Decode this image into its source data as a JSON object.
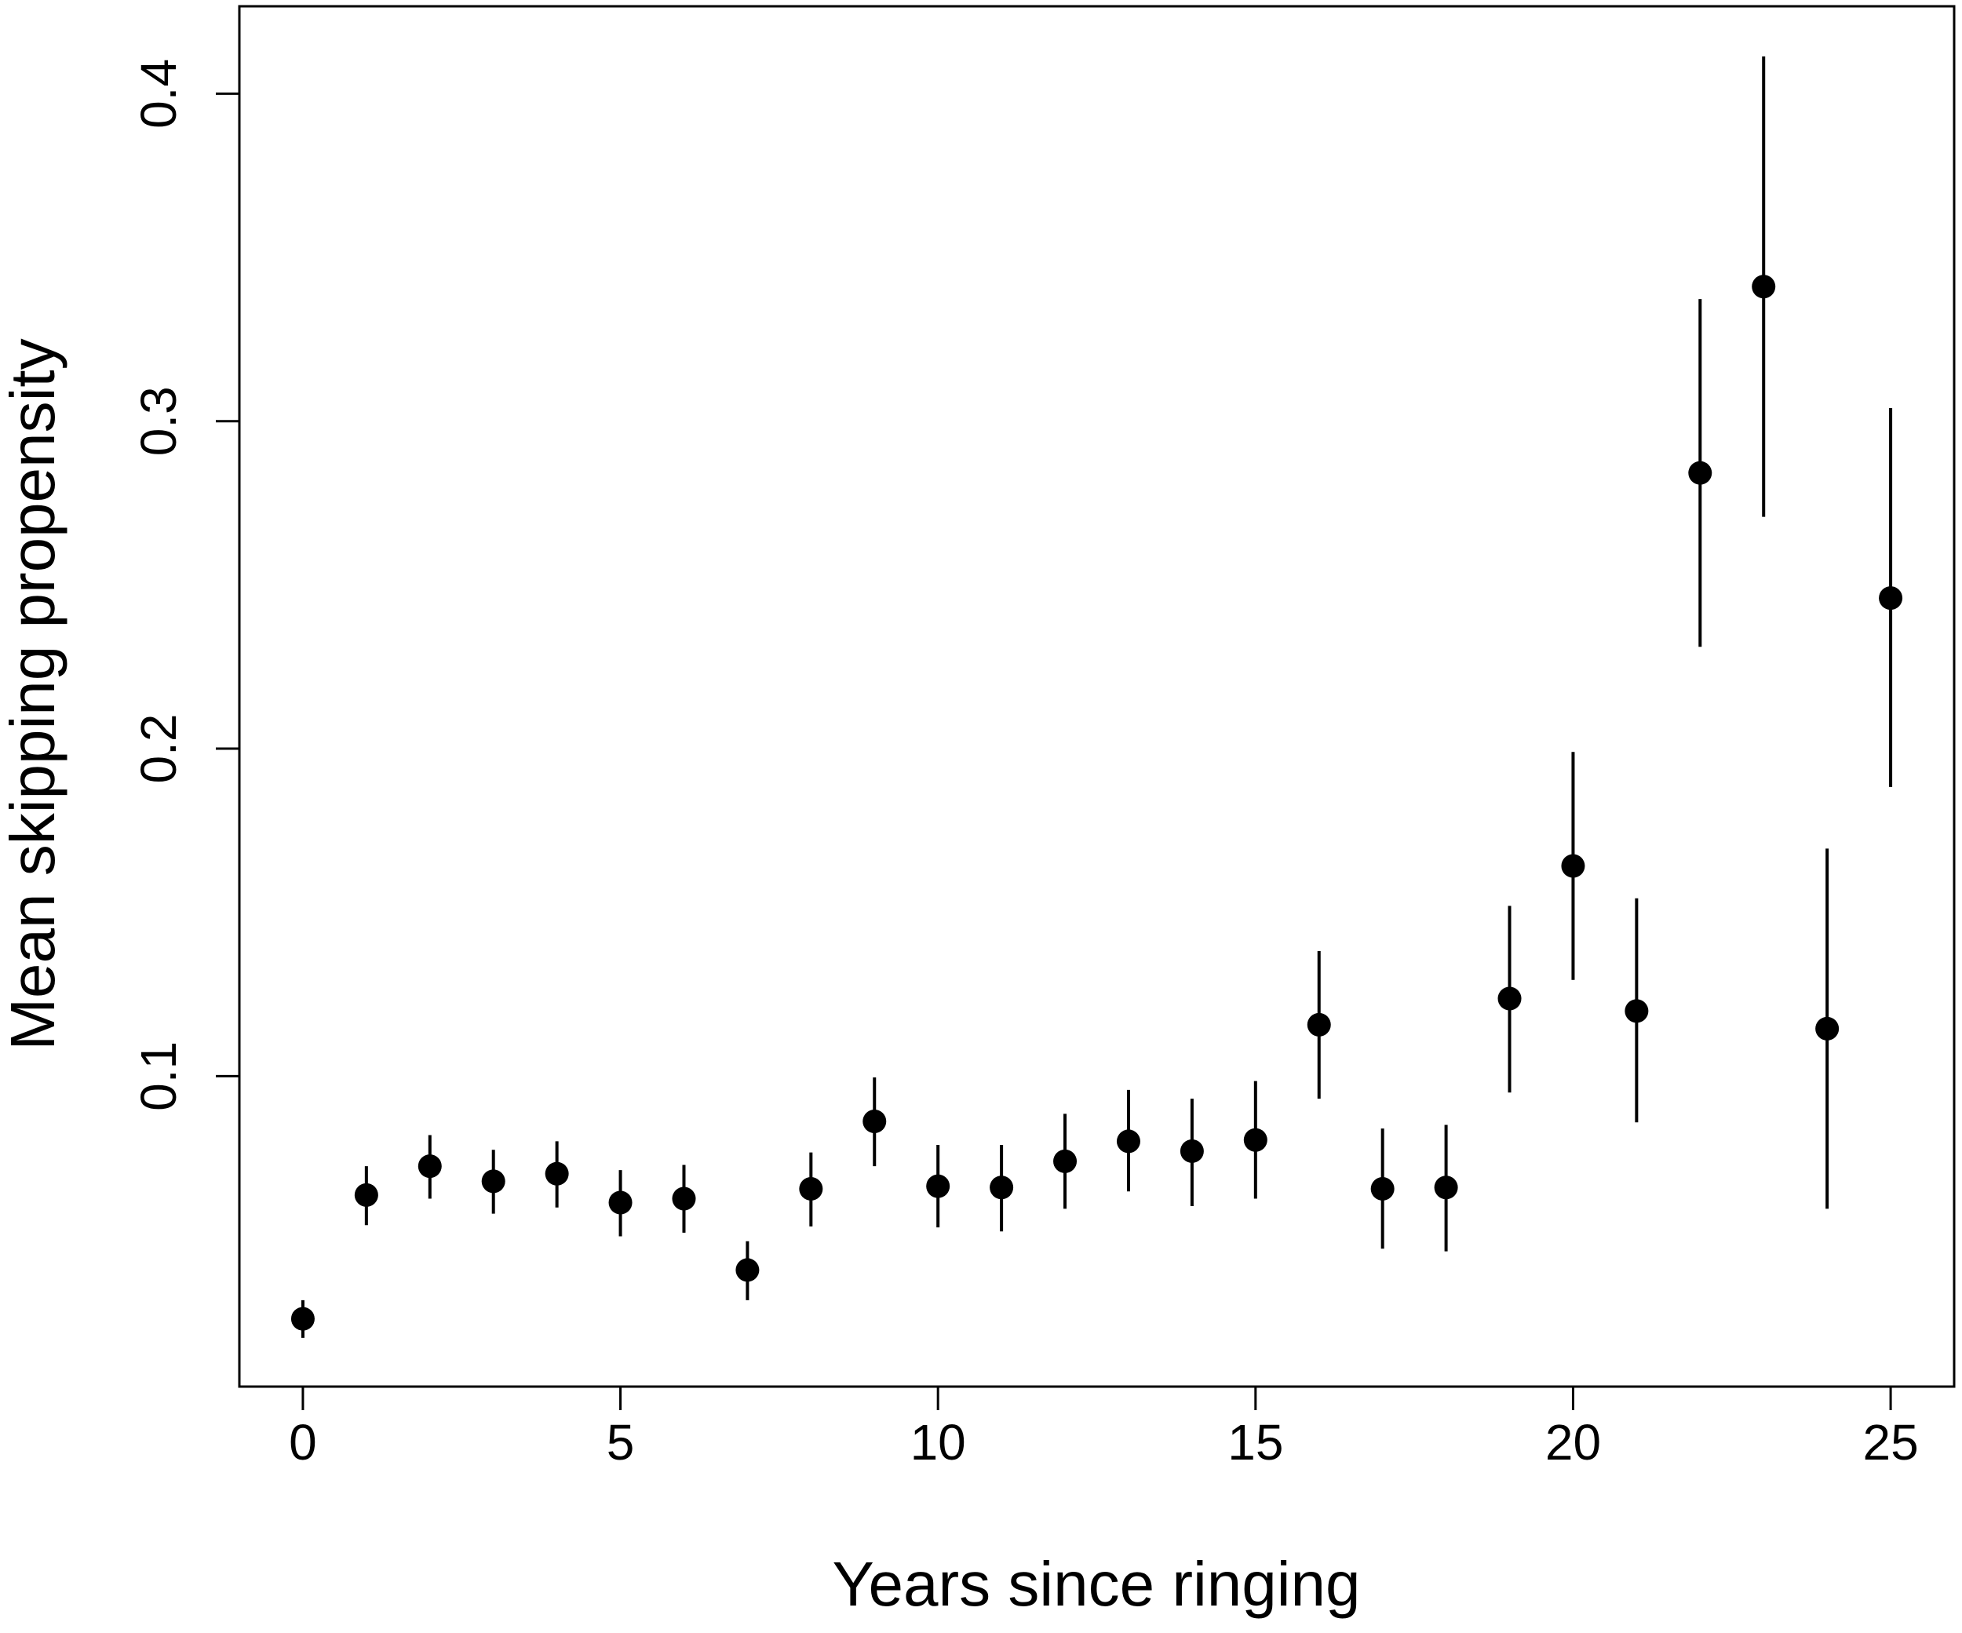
{
  "chart_data": {
    "type": "scatter",
    "xlabel": "Years since ringing",
    "ylabel": "Mean skipping propensity",
    "x": [
      0,
      1,
      2,
      3,
      4,
      5,
      6,
      7,
      8,
      9,
      10,
      11,
      12,
      13,
      14,
      15,
      16,
      17,
      18,
      19,
      20,
      21,
      22,
      23,
      24,
      25
    ],
    "series": [
      {
        "color": "#000000",
        "values": [
          0.0259,
          0.0637,
          0.0725,
          0.0679,
          0.0702,
          0.0614,
          0.0626,
          0.0408,
          0.0656,
          0.0862,
          0.0664,
          0.066,
          0.074,
          0.0801,
          0.0771,
          0.0805,
          0.1157,
          0.0656,
          0.066,
          0.1237,
          0.1642,
          0.1199,
          0.2842,
          0.3411,
          0.1145,
          0.246
        ],
        "lower": [
          0.0201,
          0.0545,
          0.0626,
          0.058,
          0.0599,
          0.0511,
          0.0522,
          0.0316,
          0.0541,
          0.0725,
          0.0538,
          0.0526,
          0.0595,
          0.0648,
          0.0603,
          0.0626,
          0.0931,
          0.0473,
          0.0465,
          0.095,
          0.1294,
          0.0859,
          0.2311,
          0.2708,
          0.0595,
          0.1883
        ],
        "upper": [
          0.0316,
          0.0725,
          0.082,
          0.0775,
          0.0801,
          0.0713,
          0.0729,
          0.0496,
          0.0767,
          0.0996,
          0.079,
          0.079,
          0.0885,
          0.0958,
          0.0931,
          0.0985,
          0.1382,
          0.084,
          0.0851,
          0.152,
          0.199,
          0.1543,
          0.3373,
          0.4114,
          0.1695,
          0.304
        ]
      }
    ],
    "xlim": [
      -1,
      26
    ],
    "ylim": [
      0.0052,
      0.4267
    ],
    "xticks": [
      0,
      5,
      10,
      15,
      20,
      25
    ],
    "yticks": [
      0.1,
      0.2,
      0.3,
      0.4
    ]
  }
}
